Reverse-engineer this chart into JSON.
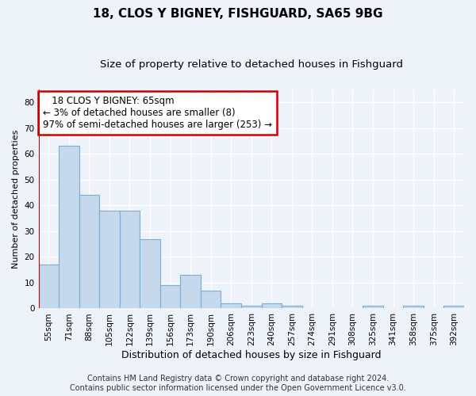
{
  "title": "18, CLOS Y BIGNEY, FISHGUARD, SA65 9BG",
  "subtitle": "Size of property relative to detached houses in Fishguard",
  "xlabel": "Distribution of detached houses by size in Fishguard",
  "ylabel": "Number of detached properties",
  "categories": [
    "55sqm",
    "71sqm",
    "88sqm",
    "105sqm",
    "122sqm",
    "139sqm",
    "156sqm",
    "173sqm",
    "190sqm",
    "206sqm",
    "223sqm",
    "240sqm",
    "257sqm",
    "274sqm",
    "291sqm",
    "308sqm",
    "325sqm",
    "341sqm",
    "358sqm",
    "375sqm",
    "392sqm"
  ],
  "values": [
    17,
    63,
    44,
    38,
    38,
    27,
    9,
    13,
    7,
    2,
    1,
    2,
    1,
    0,
    0,
    0,
    1,
    0,
    1,
    0,
    1
  ],
  "bar_color": "#c5d8ec",
  "bar_edge_color": "#7aaed4",
  "highlight_line_color": "#cc0000",
  "annotation_line1": "   18 CLOS Y BIGNEY: 65sqm",
  "annotation_line2": "← 3% of detached houses are smaller (8)",
  "annotation_line3": "97% of semi-detached houses are larger (253) →",
  "annotation_box_color": "#ffffff",
  "annotation_box_edge_color": "#cc0000",
  "ylim": [
    0,
    85
  ],
  "yticks": [
    0,
    10,
    20,
    30,
    40,
    50,
    60,
    70,
    80
  ],
  "background_color": "#eef2f9",
  "grid_color": "#ffffff",
  "title_fontsize": 11,
  "subtitle_fontsize": 9.5,
  "xlabel_fontsize": 9,
  "ylabel_fontsize": 8,
  "tick_fontsize": 7.5,
  "annotation_fontsize": 8.5,
  "footer_fontsize": 7
}
